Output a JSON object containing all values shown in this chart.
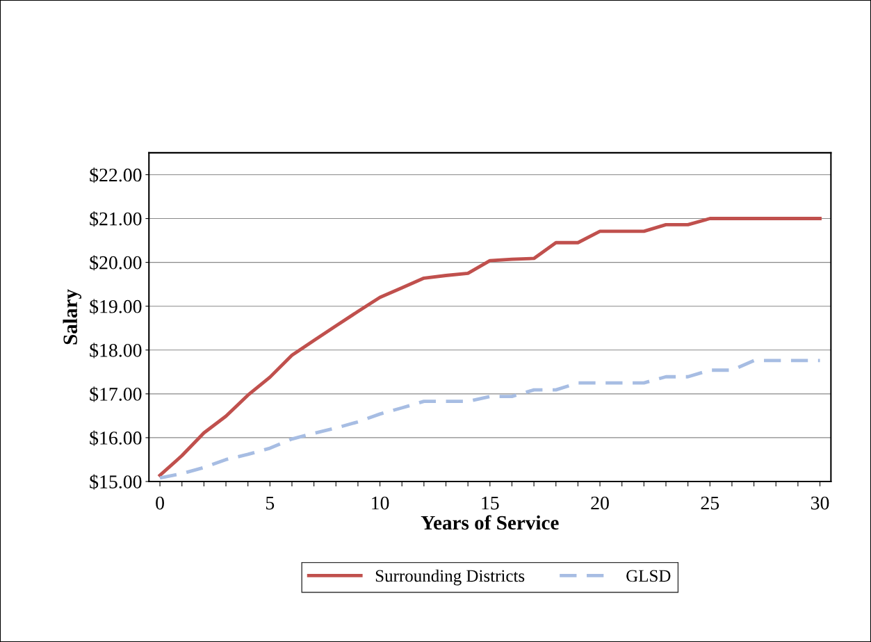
{
  "chart_data": {
    "type": "line",
    "xlabel": "Years of Service",
    "ylabel": "Salary",
    "x": [
      0,
      1,
      2,
      3,
      4,
      5,
      6,
      7,
      8,
      9,
      10,
      11,
      12,
      13,
      14,
      15,
      16,
      17,
      18,
      19,
      20,
      21,
      22,
      23,
      24,
      25,
      26,
      27,
      28,
      29,
      30
    ],
    "series": [
      {
        "name": "Surrounding Districts",
        "color": "#c0504d",
        "line_style": "solid",
        "values": [
          15.14,
          15.59,
          16.11,
          16.49,
          16.97,
          17.38,
          17.88,
          18.22,
          18.55,
          18.88,
          19.2,
          19.42,
          19.64,
          19.7,
          19.75,
          20.04,
          20.07,
          20.09,
          20.45,
          20.45,
          20.71,
          20.71,
          20.71,
          20.86,
          20.86,
          21.0,
          21.0,
          21.0,
          21.0,
          21.0,
          21.0
        ]
      },
      {
        "name": "GLSD",
        "color": "#a7bde3",
        "line_style": "dashed",
        "values": [
          15.08,
          15.18,
          15.32,
          15.5,
          15.62,
          15.76,
          15.97,
          16.1,
          16.22,
          16.36,
          16.54,
          16.68,
          16.83,
          16.83,
          16.83,
          16.94,
          16.94,
          17.09,
          17.09,
          17.25,
          17.25,
          17.25,
          17.25,
          17.39,
          17.39,
          17.54,
          17.54,
          17.76,
          17.76,
          17.76,
          17.76
        ]
      }
    ],
    "xlim": [
      -0.5,
      30.5
    ],
    "xticks": [
      0,
      {
        "value": 1,
        "label": null
      },
      {
        "value": 2,
        "label": null
      },
      {
        "value": 3,
        "label": null
      },
      {
        "value": 4,
        "label": null
      },
      5,
      {
        "value": 6,
        "label": null
      },
      {
        "value": 7,
        "label": null
      },
      {
        "value": 8,
        "label": null
      },
      {
        "value": 9,
        "label": null
      },
      10,
      {
        "value": 11,
        "label": null
      },
      {
        "value": 12,
        "label": null
      },
      {
        "value": 13,
        "label": null
      },
      {
        "value": 14,
        "label": null
      },
      15,
      {
        "value": 16,
        "label": null
      },
      {
        "value": 17,
        "label": null
      },
      {
        "value": 18,
        "label": null
      },
      {
        "value": 19,
        "label": null
      },
      20,
      {
        "value": 21,
        "label": null
      },
      {
        "value": 22,
        "label": null
      },
      {
        "value": 23,
        "label": null
      },
      {
        "value": 24,
        "label": null
      },
      25,
      {
        "value": 26,
        "label": null
      },
      {
        "value": 27,
        "label": null
      },
      {
        "value": 28,
        "label": null
      },
      {
        "value": 29,
        "label": null
      },
      30
    ],
    "ylim": [
      15,
      22.5
    ],
    "yticks": [
      {
        "value": 15,
        "label": "$15.00"
      },
      {
        "value": 16,
        "label": "$16.00"
      },
      {
        "value": 17,
        "label": "$17.00"
      },
      {
        "value": 18,
        "label": "$18.00"
      },
      {
        "value": 19,
        "label": "$19.00"
      },
      {
        "value": 20,
        "label": "$20.00"
      },
      {
        "value": 21,
        "label": "$21.00"
      },
      {
        "value": 22,
        "label": "$22.00"
      }
    ],
    "grid": "y",
    "legend": "bottom",
    "marker": "none"
  }
}
